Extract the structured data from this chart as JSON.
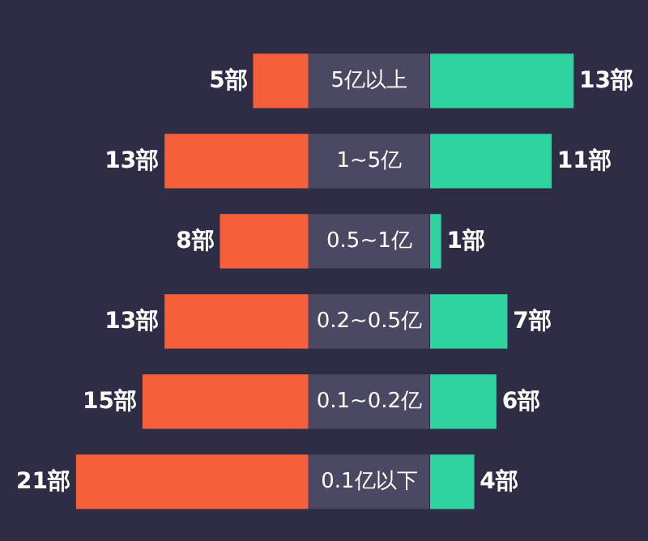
{
  "chart_data": [
    {
      "type": "bar",
      "orientation": "horizontal",
      "categories": [
        "5亿以上",
        "1~5亿",
        "0.5~1亿",
        "0.2~0.5亿",
        "0.1~0.2亿",
        "0.1亿以下"
      ],
      "color": "#f5603a",
      "values": [
        5,
        13,
        8,
        13,
        15,
        21
      ],
      "value_labels": [
        "5部",
        "13部",
        "8部",
        "13部",
        "15部",
        "21部"
      ]
    },
    {
      "type": "bar",
      "orientation": "horizontal",
      "categories": [
        null,
        null,
        null,
        null,
        null,
        null
      ],
      "color": "#2ed3a0",
      "values": [
        13,
        11,
        1,
        7,
        6,
        4
      ],
      "value_labels": [
        "13部",
        "11部",
        "1部",
        "7部",
        "6部",
        "4部"
      ]
    }
  ]
}
